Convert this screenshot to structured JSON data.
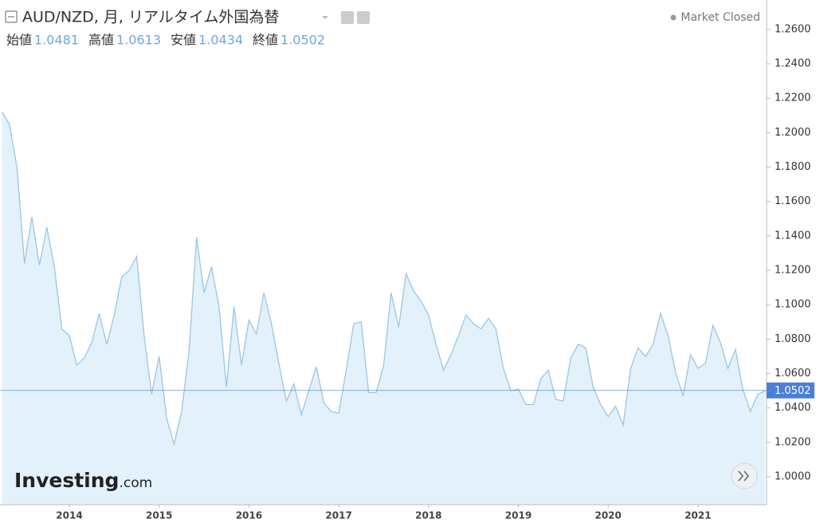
{
  "chart_data": {
    "type": "area",
    "title": "AUD/NZD, 月, リアルタイム外国為替",
    "status": "Market Closed",
    "ohlc": [
      {
        "label": "始値",
        "value": 1.0481
      },
      {
        "label": "高値",
        "value": 1.0613
      },
      {
        "label": "安値",
        "value": 1.0434
      },
      {
        "label": "終値",
        "value": 1.0502
      }
    ],
    "current_value": 1.0502,
    "logo": "Investing",
    "logo_suffix": ".com",
    "line_color": "#9cc5e3",
    "fill_color": "#e3f1fb",
    "current_color": "#4a7fd8",
    "x": [
      2013.25,
      2013.333,
      2013.417,
      2013.5,
      2013.583,
      2013.667,
      2013.75,
      2013.833,
      2013.917,
      2014,
      2014.083,
      2014.167,
      2014.25,
      2014.333,
      2014.417,
      2014.5,
      2014.583,
      2014.667,
      2014.75,
      2014.833,
      2014.917,
      2015,
      2015.083,
      2015.167,
      2015.25,
      2015.333,
      2015.417,
      2015.5,
      2015.583,
      2015.667,
      2015.75,
      2015.833,
      2015.917,
      2016,
      2016.083,
      2016.167,
      2016.25,
      2016.333,
      2016.417,
      2016.5,
      2016.583,
      2016.667,
      2016.75,
      2016.833,
      2016.917,
      2017,
      2017.083,
      2017.167,
      2017.25,
      2017.333,
      2017.417,
      2017.5,
      2017.583,
      2017.667,
      2017.75,
      2017.833,
      2017.917,
      2018,
      2018.083,
      2018.167,
      2018.25,
      2018.333,
      2018.417,
      2018.5,
      2018.583,
      2018.667,
      2018.75,
      2018.833,
      2018.917,
      2019,
      2019.083,
      2019.167,
      2019.25,
      2019.333,
      2019.417,
      2019.5,
      2019.583,
      2019.667,
      2019.75,
      2019.833,
      2019.917,
      2020,
      2020.083,
      2020.167,
      2020.25,
      2020.333,
      2020.417,
      2020.5,
      2020.583,
      2020.667,
      2020.75,
      2020.833,
      2020.917,
      2021,
      2021.083,
      2021.167,
      2021.25,
      2021.333,
      2021.417,
      2021.5,
      2021.583,
      2021.667,
      2021.75
    ],
    "values": [
      1.212,
      1.205,
      1.18,
      1.124,
      1.151,
      1.123,
      1.145,
      1.122,
      1.086,
      1.082,
      1.065,
      1.069,
      1.078,
      1.095,
      1.077,
      1.094,
      1.116,
      1.12,
      1.128,
      1.082,
      1.048,
      1.07,
      1.034,
      1.019,
      1.038,
      1.073,
      1.139,
      1.107,
      1.122,
      1.099,
      1.052,
      1.099,
      1.065,
      1.091,
      1.083,
      1.107,
      1.089,
      1.066,
      1.044,
      1.054,
      1.036,
      1.05,
      1.064,
      1.043,
      1.038,
      1.037,
      1.062,
      1.089,
      1.09,
      1.049,
      1.049,
      1.065,
      1.107,
      1.087,
      1.118,
      1.108,
      1.102,
      1.094,
      1.077,
      1.062,
      1.071,
      1.082,
      1.094,
      1.089,
      1.086,
      1.092,
      1.086,
      1.063,
      1.05,
      1.051,
      1.042,
      1.042,
      1.057,
      1.062,
      1.045,
      1.044,
      1.069,
      1.077,
      1.075,
      1.052,
      1.042,
      1.035,
      1.041,
      1.03,
      1.063,
      1.075,
      1.07,
      1.077,
      1.095,
      1.082,
      1.061,
      1.047,
      1.071,
      1.063,
      1.066,
      1.088,
      1.078,
      1.063,
      1.074,
      1.051,
      1.038,
      1.048,
      1.05
    ],
    "xlim": [
      2013.228,
      2021.764
    ],
    "xticks": [
      2014,
      2015,
      2016,
      2017,
      2018,
      2019,
      2020,
      2021
    ],
    "ylim": [
      0.9838,
      1.2771
    ],
    "yticks": [
      {
        "value": 1.0,
        "label": "1.0000"
      },
      {
        "value": 1.02,
        "label": "1.0200"
      },
      {
        "value": 1.04,
        "label": "1.0400"
      },
      {
        "value": 1.06,
        "label": "1.0600"
      },
      {
        "value": 1.08,
        "label": "1.0800"
      },
      {
        "value": 1.1,
        "label": "1.1000"
      },
      {
        "value": 1.12,
        "label": "1.1200"
      },
      {
        "value": 1.14,
        "label": "1.1400"
      },
      {
        "value": 1.16,
        "label": "1.1600"
      },
      {
        "value": 1.18,
        "label": "1.1800"
      },
      {
        "value": 1.2,
        "label": "1.2000"
      },
      {
        "value": 1.22,
        "label": "1.2200"
      },
      {
        "value": 1.24,
        "label": "1.2400"
      },
      {
        "value": 1.26,
        "label": "1.2600"
      }
    ]
  }
}
